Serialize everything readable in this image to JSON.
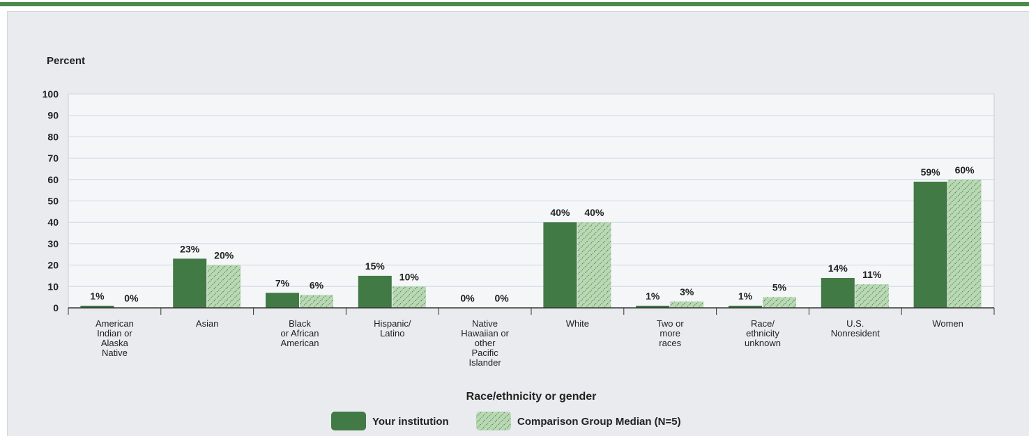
{
  "chart_data": {
    "type": "bar",
    "ylabel": "Percent",
    "xlabel": "Race/ethnicity or gender",
    "ylim": [
      0,
      100
    ],
    "yticks": [
      0,
      10,
      20,
      30,
      40,
      50,
      60,
      70,
      80,
      90,
      100
    ],
    "grid": true,
    "legend_position": "bottom",
    "categories": [
      "American Indian or Alaska Native",
      "Asian",
      "Black or African American",
      "Hispanic/ Latino",
      "Native Hawaiian or other Pacific Islander",
      "White",
      "Two or more races",
      "Race/ ethnicity unknown",
      "U.S. Nonresident",
      "Women"
    ],
    "category_lines": [
      [
        "American",
        "Indian or",
        "Alaska",
        "Native"
      ],
      [
        "Asian"
      ],
      [
        "Black",
        "or African",
        "American"
      ],
      [
        "Hispanic/",
        "Latino"
      ],
      [
        "Native",
        "Hawaiian or",
        "other",
        "Pacific",
        "Islander"
      ],
      [
        "White"
      ],
      [
        "Two or",
        "more",
        "races"
      ],
      [
        "Race/",
        "ethnicity",
        "unknown"
      ],
      [
        "U.S.",
        "Nonresident"
      ],
      [
        "Women"
      ]
    ],
    "series": [
      {
        "name": "Your institution",
        "color": "#417a44",
        "pattern": "solid",
        "values": [
          1,
          23,
          7,
          15,
          0,
          40,
          1,
          1,
          14,
          59
        ],
        "labels": [
          "1%",
          "23%",
          "7%",
          "15%",
          "0%",
          "40%",
          "1%",
          "1%",
          "14%",
          "59%"
        ]
      },
      {
        "name": "Comparison Group Median (N=5)",
        "color": "#b9d8b4",
        "pattern": "hatched",
        "values": [
          0,
          20,
          6,
          10,
          0,
          40,
          3,
          5,
          11,
          60
        ],
        "labels": [
          "0%",
          "20%",
          "6%",
          "10%",
          "0%",
          "40%",
          "3%",
          "5%",
          "11%",
          "60%"
        ]
      }
    ]
  }
}
